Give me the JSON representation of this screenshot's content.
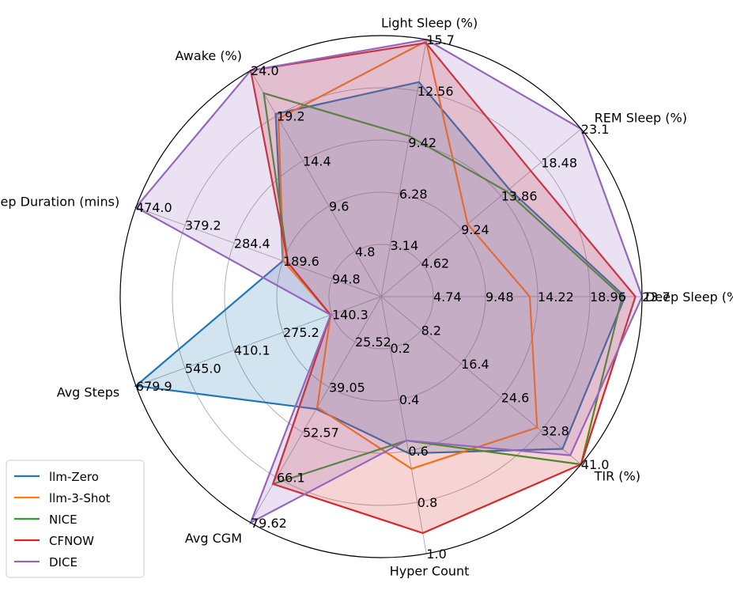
{
  "chart_data": {
    "type": "radar",
    "axes": [
      {
        "label": "Deep Sleep (%)",
        "ticks": [
          "4.74",
          "9.48",
          "14.22",
          "18.96",
          "23.7"
        ],
        "max": 23.7
      },
      {
        "label": "REM Sleep (%)",
        "ticks": [
          "4.62",
          "9.24",
          "13.86",
          "18.48",
          "23.1"
        ],
        "max": 23.1
      },
      {
        "label": "Light Sleep (%)",
        "ticks": [
          "3.14",
          "6.28",
          "9.42",
          "12.56",
          "15.7"
        ],
        "max": 15.7
      },
      {
        "label": "Awake (%)",
        "ticks": [
          "4.8",
          "9.6",
          "14.4",
          "19.2",
          "24.0"
        ],
        "max": 24.0
      },
      {
        "label": "Total Sleep Duration (mins)",
        "ticks": [
          "94.8",
          "189.6",
          "284.4",
          "379.2",
          "474.0"
        ],
        "max": 474.0
      },
      {
        "label": "Avg Steps",
        "ticks": [
          "140.3",
          "275.2",
          "410.1",
          "545.0",
          "679.9"
        ],
        "max": 679.9
      },
      {
        "label": "Avg CGM",
        "ticks": [
          "25.52",
          "39.05",
          "52.57",
          "66.1",
          "79.62"
        ],
        "max": 79.62
      },
      {
        "label": "Hyper Count",
        "ticks": [
          "0.2",
          "0.4",
          "0.6",
          "0.8",
          "1.0"
        ],
        "max": 1.0
      },
      {
        "label": "TIR (%)",
        "ticks": [
          "8.2",
          "16.4",
          "24.6",
          "32.8",
          "41.0"
        ],
        "max": 41.0
      }
    ],
    "series": [
      {
        "name": "llm-Zero",
        "color": "#1f77b4",
        "fill": true,
        "values": [
          22.15,
          14.8,
          13.1,
          19.4,
          190.0,
          680.0,
          39.6,
          0.61,
          37.2
        ]
      },
      {
        "label_note": "",
        "name": "llm-3-Shot",
        "color": "#ff7f0e",
        "fill": false,
        "values": [
          13.5,
          10.0,
          15.6,
          18.9,
          189.0,
          140.0,
          39.0,
          0.67,
          32.0
        ]
      },
      {
        "name": "NICE",
        "color": "#2ca02c",
        "fill": false,
        "values": [
          21.9,
          14.5,
          9.8,
          21.6,
          180.0,
          140.0,
          66.0,
          0.56,
          41.0
        ]
      },
      {
        "name": "CFNOW",
        "color": "#d62728",
        "fill": true,
        "values": [
          23.1,
          17.3,
          15.5,
          24.0,
          180.0,
          140.0,
          66.0,
          0.92,
          41.0
        ]
      },
      {
        "name": "DICE",
        "color": "#9467bd",
        "fill": true,
        "values": [
          23.7,
          23.1,
          15.7,
          24.0,
          474.0,
          140.0,
          79.62,
          0.56,
          38.8
        ]
      }
    ],
    "legend_position": "lower-left",
    "grid": true
  }
}
